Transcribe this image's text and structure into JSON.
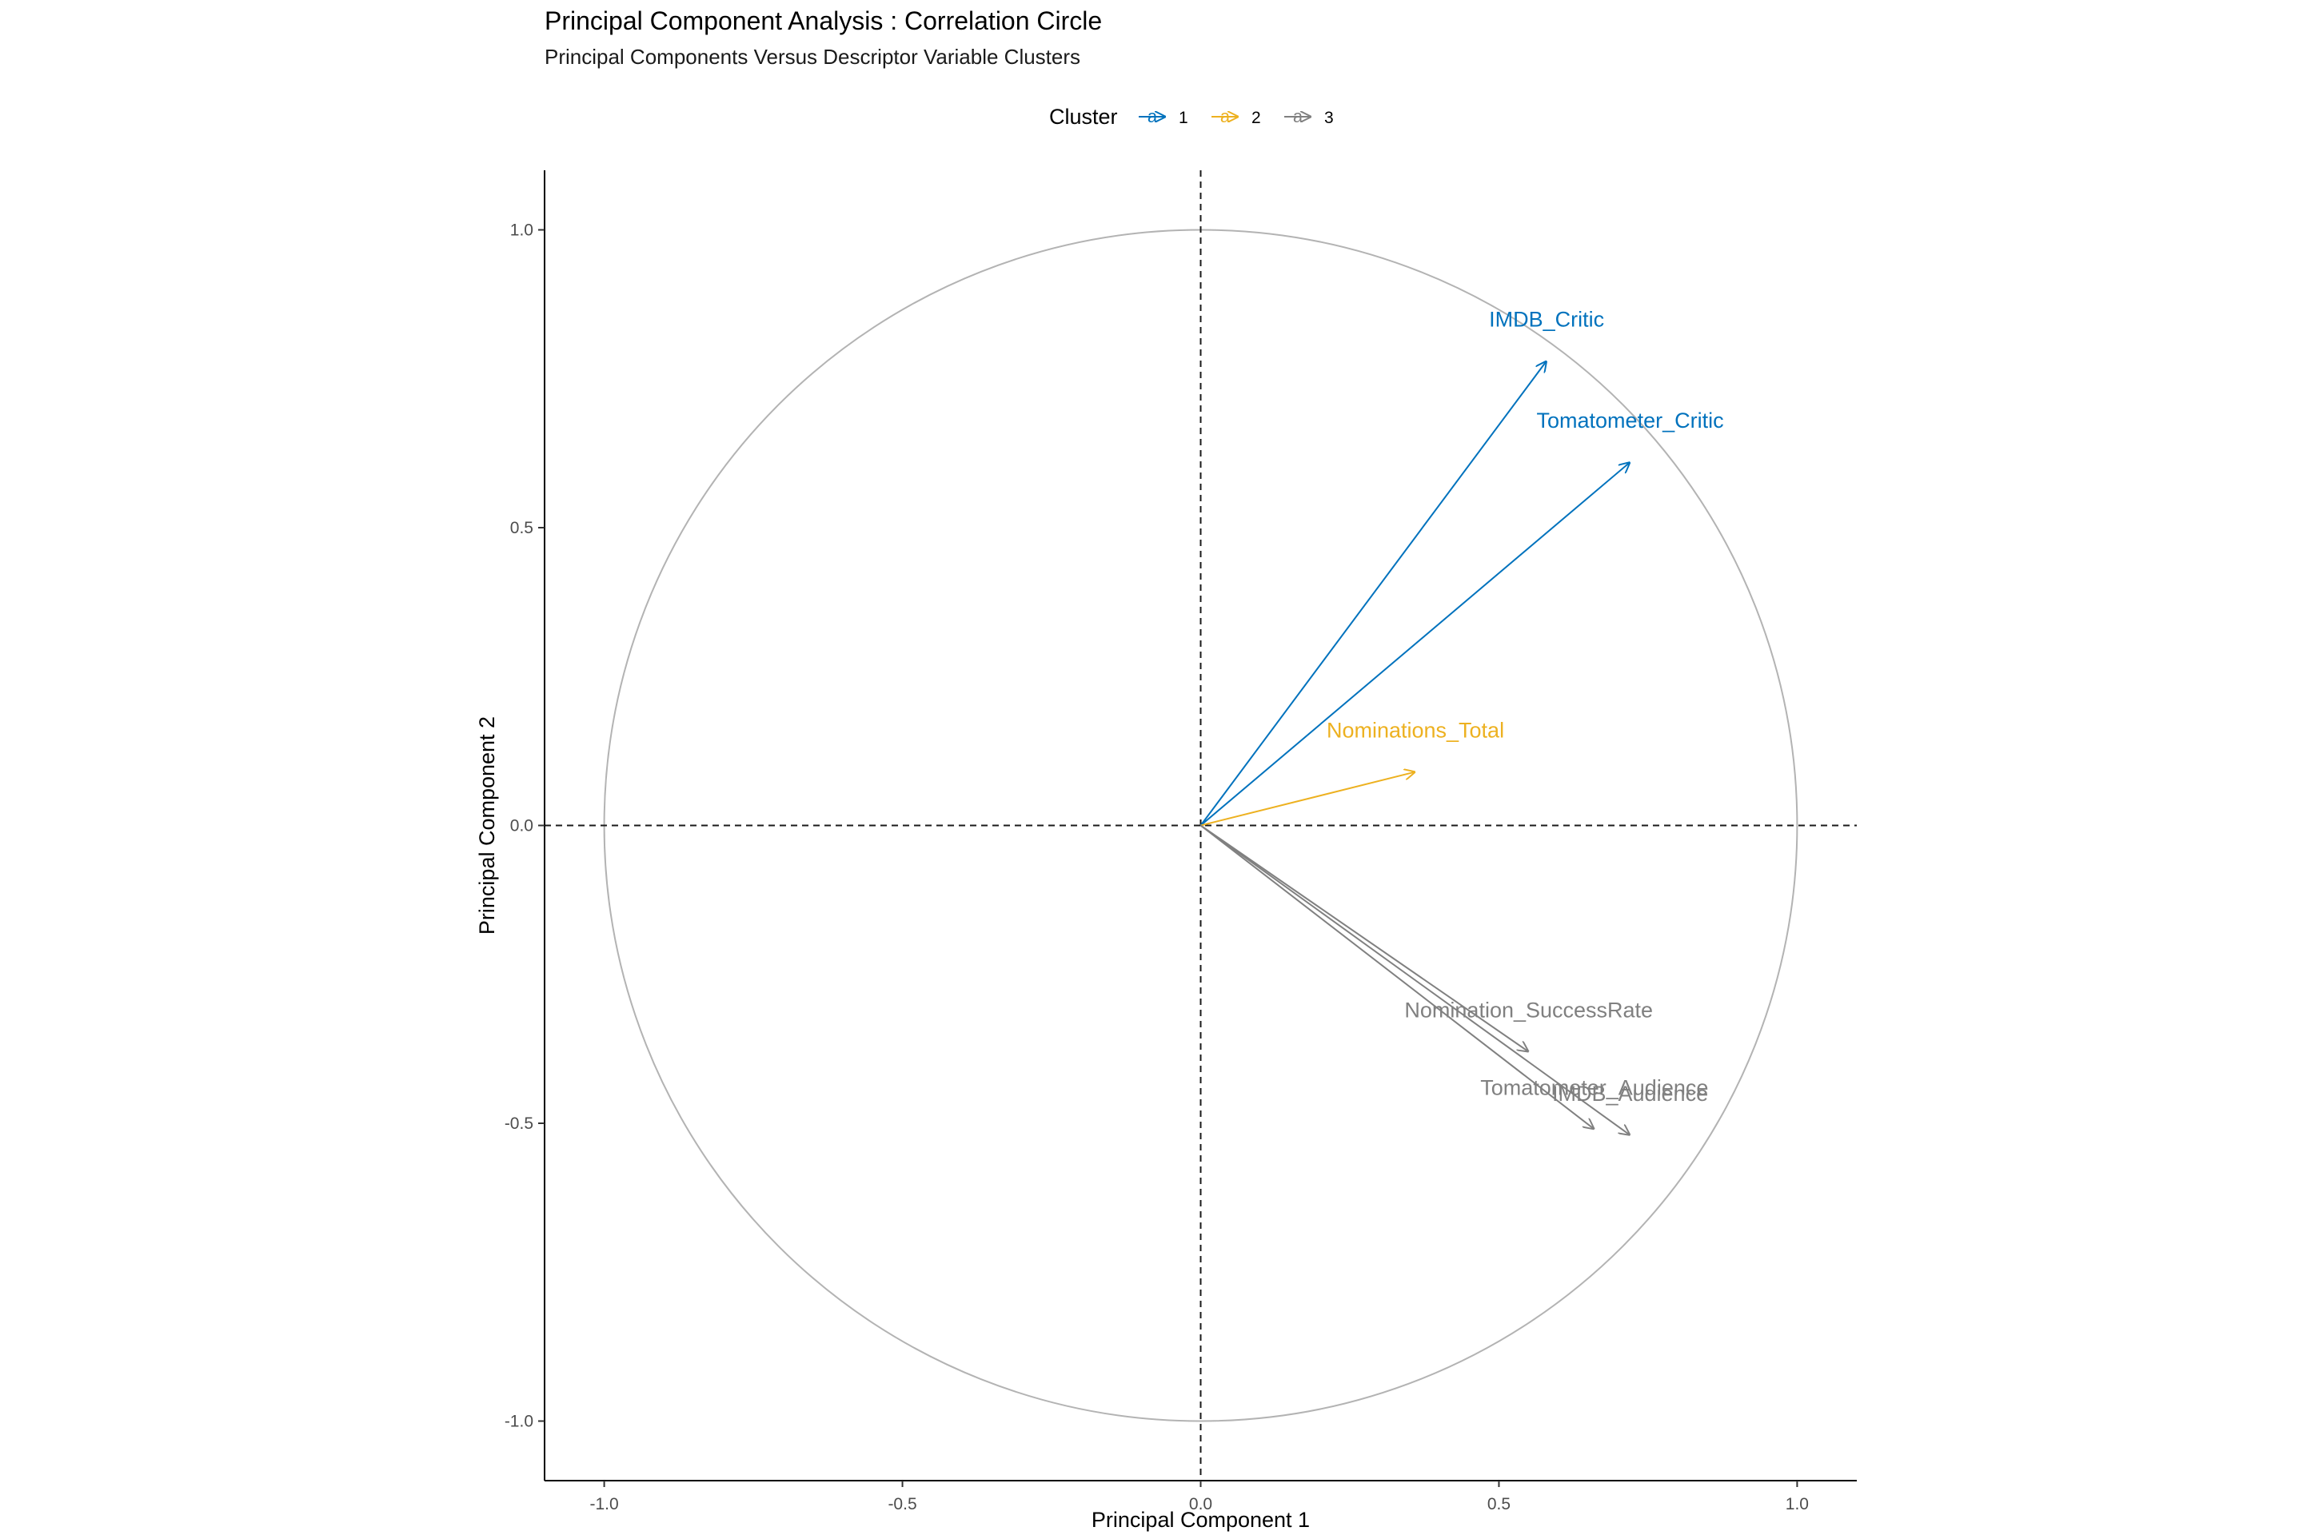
{
  "chart_data": {
    "type": "scatter",
    "title": "Principal Component Analysis : Correlation Circle",
    "subtitle": "Principal Components Versus Descriptor Variable Clusters",
    "xlabel": "Principal Component 1",
    "ylabel": "Principal Component 2",
    "xlim": [
      -1.1,
      1.1
    ],
    "ylim": [
      -1.1,
      1.1
    ],
    "x_ticks": [
      -1.0,
      -0.5,
      0.0,
      0.5,
      1.0
    ],
    "y_ticks": [
      -1.0,
      -0.5,
      0.0,
      0.5,
      1.0
    ],
    "x_tick_labels": [
      "-1.0",
      "-0.5",
      "0.0",
      "0.5",
      "1.0"
    ],
    "y_tick_labels": [
      "-1.0",
      "-0.5",
      "0.0",
      "0.5",
      "1.0"
    ],
    "grid": false,
    "unit_circle": true,
    "legend": {
      "title": "Cluster",
      "position": "top",
      "entries": [
        {
          "label": "1",
          "color": "#0072BD"
        },
        {
          "label": "2",
          "color": "#EDB120"
        },
        {
          "label": "3",
          "color": "#808080"
        }
      ]
    },
    "series": [
      {
        "cluster": "1",
        "color": "#0072BD",
        "variables": [
          {
            "label": "IMDB_Critic",
            "x": 0.58,
            "y": 0.78
          },
          {
            "label": "Tomatometer_Critic",
            "x": 0.72,
            "y": 0.61
          }
        ]
      },
      {
        "cluster": "2",
        "color": "#EDB120",
        "variables": [
          {
            "label": "Nominations_Total",
            "x": 0.36,
            "y": 0.09
          }
        ]
      },
      {
        "cluster": "3",
        "color": "#808080",
        "variables": [
          {
            "label": "Nomination_SuccessRate",
            "x": 0.55,
            "y": -0.38
          },
          {
            "label": "Tomatometer_Audience",
            "x": 0.66,
            "y": -0.51
          },
          {
            "label": "IMDB_Audience",
            "x": 0.72,
            "y": -0.52
          }
        ]
      }
    ]
  }
}
